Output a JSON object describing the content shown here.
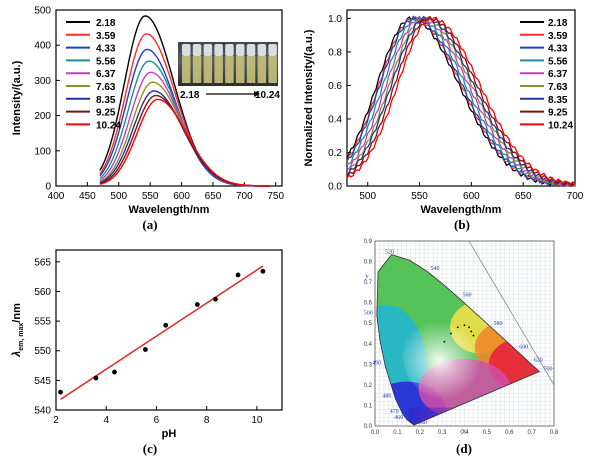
{
  "chart_data": [
    {
      "panel": "a",
      "type": "line",
      "caption": "(a)",
      "xlabel": "Wavelength/nm",
      "ylabel": "Intensity/(a.u.)",
      "xlim": [
        400,
        760
      ],
      "ylim": [
        0,
        500
      ],
      "xticks": [
        400,
        450,
        500,
        550,
        600,
        650,
        700,
        750
      ],
      "yticks": [
        0,
        100,
        200,
        300,
        400,
        500
      ],
      "x_range": [
        470,
        740
      ],
      "legend_position": "top-left",
      "inset_labels": {
        "left": "2.18",
        "right": "10.24"
      },
      "series": [
        {
          "name": "2.18",
          "color": "#000000",
          "peak_x": 542,
          "peak_y": 483
        },
        {
          "name": "3.59",
          "color": "#ff2a2a",
          "peak_x": 544,
          "peak_y": 432
        },
        {
          "name": "4.33",
          "color": "#1f3fbf",
          "peak_x": 545,
          "peak_y": 388
        },
        {
          "name": "5.56",
          "color": "#1f8e8e",
          "peak_x": 548,
          "peak_y": 355
        },
        {
          "name": "6.37",
          "color": "#c040c0",
          "peak_x": 551,
          "peak_y": 323
        },
        {
          "name": "7.63",
          "color": "#8f8f2a",
          "peak_x": 554,
          "peak_y": 295
        },
        {
          "name": "8.35",
          "color": "#223399",
          "peak_x": 556,
          "peak_y": 270
        },
        {
          "name": "9.25",
          "color": "#7a1414",
          "peak_x": 559,
          "peak_y": 257
        },
        {
          "name": "10.24",
          "color": "#ff0000",
          "peak_x": 562,
          "peak_y": 246
        }
      ]
    },
    {
      "panel": "b",
      "type": "line",
      "caption": "(b)",
      "xlabel": "Wavelength/nm",
      "ylabel": "Normalized Intensity/(a.u.)",
      "xlim": [
        480,
        700
      ],
      "ylim": [
        0,
        1.05
      ],
      "xticks": [
        500,
        550,
        600,
        650,
        700
      ],
      "yticks": [
        0.0,
        0.2,
        0.4,
        0.6,
        0.8,
        1.0
      ],
      "legend_position": "top-right",
      "series": [
        {
          "name": "2.18",
          "color": "#000000",
          "peak_x": 542
        },
        {
          "name": "3.59",
          "color": "#ff2a2a",
          "peak_x": 544
        },
        {
          "name": "4.33",
          "color": "#1f3fbf",
          "peak_x": 545
        },
        {
          "name": "5.56",
          "color": "#1f8e8e",
          "peak_x": 548
        },
        {
          "name": "6.37",
          "color": "#c040c0",
          "peak_x": 551
        },
        {
          "name": "7.63",
          "color": "#8f8f2a",
          "peak_x": 554
        },
        {
          "name": "8.35",
          "color": "#223399",
          "peak_x": 556
        },
        {
          "name": "9.25",
          "color": "#7a1414",
          "peak_x": 559
        },
        {
          "name": "10.24",
          "color": "#ff0000",
          "peak_x": 562
        }
      ]
    },
    {
      "panel": "c",
      "type": "scatter",
      "caption": "(c)",
      "xlabel": "pH",
      "ylabel_main": "λ",
      "ylabel_sub": "em, max",
      "ylabel_unit": "/nm",
      "xlim": [
        2,
        11
      ],
      "ylim": [
        540,
        567
      ],
      "xticks": [
        2,
        4,
        6,
        8,
        10
      ],
      "yticks": [
        540,
        545,
        550,
        555,
        560,
        565
      ],
      "x": [
        2.18,
        3.59,
        4.33,
        5.56,
        6.37,
        7.63,
        8.35,
        9.25,
        10.24
      ],
      "y": [
        543.0,
        545.4,
        546.4,
        550.2,
        554.3,
        557.8,
        558.7,
        562.8,
        563.4
      ],
      "fit_line": {
        "color": "#e8231d",
        "x": [
          2.18,
          10.24
        ],
        "y": [
          541.8,
          564.3
        ]
      }
    },
    {
      "panel": "d",
      "type": "other",
      "caption": "(d)",
      "description_hidden": false,
      "xlabel": "x",
      "ylabel": "y",
      "xlim": [
        0,
        0.8
      ],
      "ylim": [
        0,
        0.9
      ],
      "xticks": [
        0.0,
        0.1,
        0.2,
        0.3,
        0.4,
        0.5,
        0.6,
        0.7,
        0.8
      ],
      "yticks": [
        0.0,
        0.1,
        0.2,
        0.3,
        0.4,
        0.5,
        0.6,
        0.7,
        0.8,
        0.9
      ],
      "wavelength_labels": [
        {
          "label": "520",
          "x": 0.074,
          "y": 0.834
        },
        {
          "label": "540",
          "x": 0.23,
          "y": 0.754
        },
        {
          "label": "560",
          "x": 0.373,
          "y": 0.624
        },
        {
          "label": "580",
          "x": 0.512,
          "y": 0.487
        },
        {
          "label": "600",
          "x": 0.627,
          "y": 0.373
        },
        {
          "label": "620",
          "x": 0.691,
          "y": 0.308
        },
        {
          "label": "700",
          "x": 0.735,
          "y": 0.265
        },
        {
          "label": "500",
          "x": 0.008,
          "y": 0.538
        },
        {
          "label": "490",
          "x": 0.045,
          "y": 0.295
        },
        {
          "label": "480",
          "x": 0.091,
          "y": 0.133
        },
        {
          "label": "470",
          "x": 0.124,
          "y": 0.058
        },
        {
          "label": "460",
          "x": 0.144,
          "y": 0.03
        },
        {
          "label": "380",
          "x": 0.174,
          "y": 0.005
        }
      ],
      "chromaticity_points": {
        "x": [
          0.31,
          0.34,
          0.37,
          0.4,
          0.42,
          0.43,
          0.44
        ],
        "y": [
          0.41,
          0.45,
          0.48,
          0.49,
          0.48,
          0.46,
          0.44
        ]
      }
    }
  ]
}
